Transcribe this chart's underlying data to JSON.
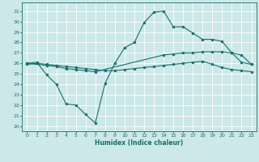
{
  "xlabel": "Humidex (Indice chaleur)",
  "xlim": [
    -0.5,
    23.5
  ],
  "ylim": [
    19.5,
    31.8
  ],
  "yticks": [
    20,
    21,
    22,
    23,
    24,
    25,
    26,
    27,
    28,
    29,
    30,
    31
  ],
  "xticks": [
    0,
    1,
    2,
    3,
    4,
    5,
    6,
    7,
    8,
    9,
    10,
    11,
    12,
    13,
    14,
    15,
    16,
    17,
    18,
    19,
    20,
    21,
    22,
    23
  ],
  "bg_color": "#cce8e8",
  "line_color": "#1a6e6e",
  "grid_color": "#ffffff",
  "line1_x": [
    0,
    1,
    2,
    3,
    4,
    5,
    6,
    7,
    8,
    9,
    10,
    11,
    12,
    13,
    14,
    15,
    16,
    17,
    18,
    19,
    20,
    21,
    22,
    23
  ],
  "line1_y": [
    26.0,
    26.1,
    24.9,
    24.0,
    22.1,
    22.0,
    21.1,
    20.3,
    24.1,
    26.0,
    27.5,
    28.0,
    29.9,
    30.9,
    31.0,
    29.5,
    29.5,
    28.9,
    28.3,
    28.3,
    28.1,
    27.0,
    26.1,
    25.9
  ],
  "line2_x": [
    0,
    2,
    3,
    4,
    5,
    6,
    7,
    14,
    15,
    16,
    17,
    18,
    19,
    20,
    21,
    22,
    23
  ],
  "line2_y": [
    26.0,
    25.8,
    25.7,
    25.5,
    25.4,
    25.3,
    25.2,
    26.8,
    26.9,
    27.0,
    27.0,
    27.1,
    27.1,
    27.1,
    27.0,
    26.8,
    25.9
  ],
  "line3_x": [
    0,
    1,
    2,
    3,
    4,
    5,
    6,
    7,
    8,
    9,
    10,
    11,
    12,
    13,
    14,
    15,
    16,
    17,
    18,
    19,
    20,
    21,
    22,
    23
  ],
  "line3_y": [
    25.9,
    26.0,
    25.9,
    25.8,
    25.7,
    25.6,
    25.5,
    25.4,
    25.3,
    25.3,
    25.4,
    25.5,
    25.6,
    25.7,
    25.8,
    25.9,
    26.0,
    26.1,
    26.2,
    25.9,
    25.6,
    25.4,
    25.3,
    25.2
  ]
}
